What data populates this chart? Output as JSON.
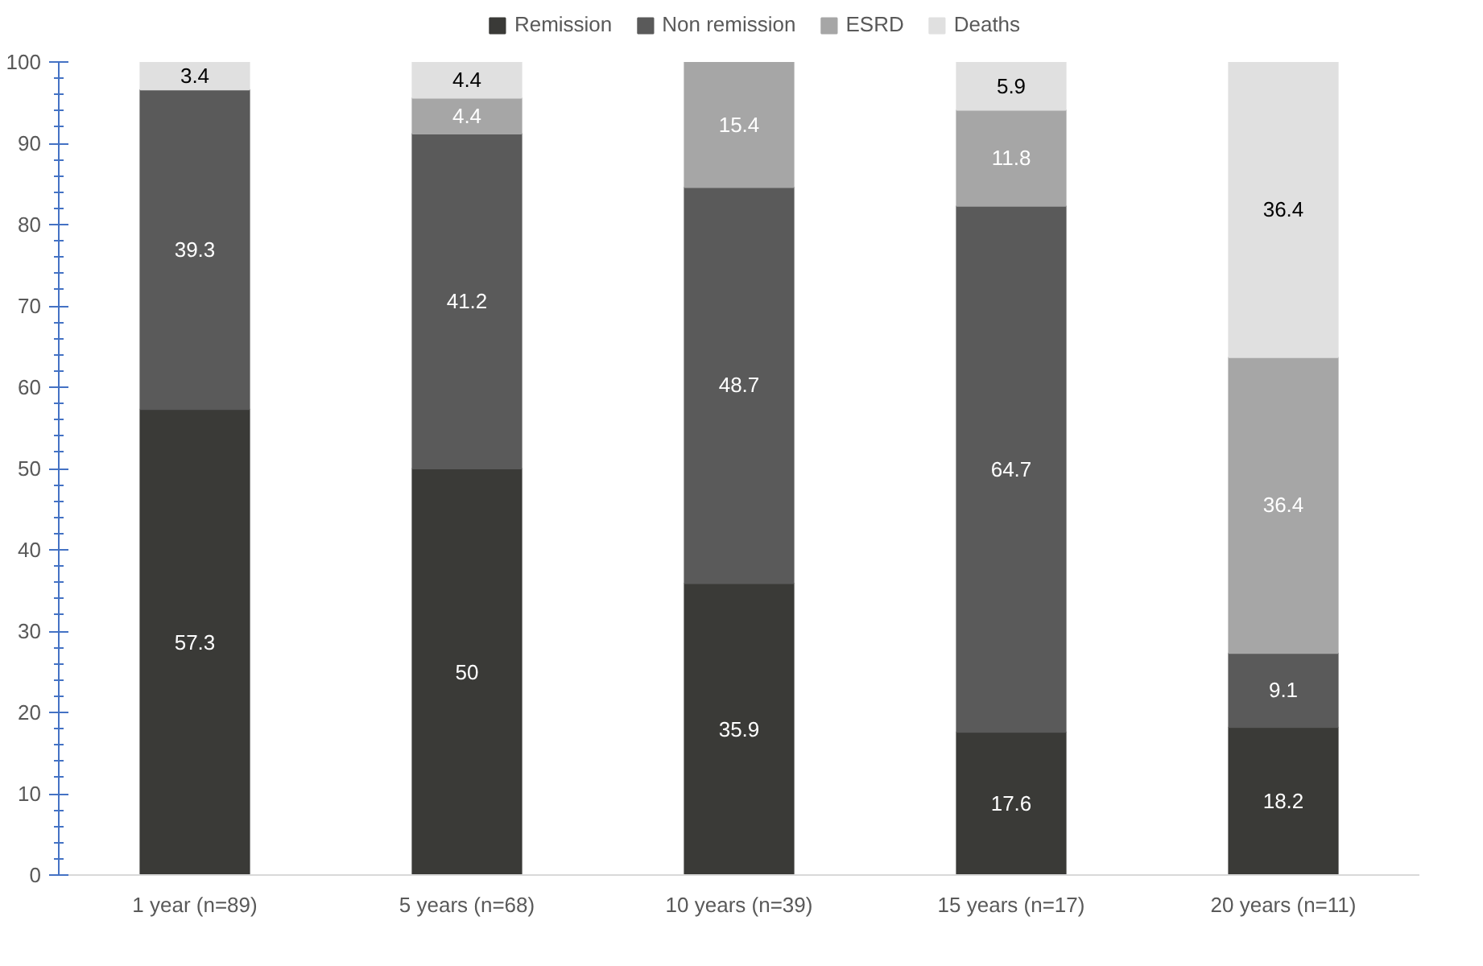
{
  "chart_data": {
    "type": "bar",
    "stacked": true,
    "data_labels": true,
    "legend": "top",
    "grid": false,
    "categories": [
      "1 year (n=89)",
      "5 years (n=68)",
      "10 years (n=39)",
      "15 years (n=17)",
      "20 years (n=11)"
    ],
    "series": [
      {
        "name": "Remission",
        "color": "#3a3a37",
        "values": [
          57.3,
          50,
          35.9,
          17.6,
          18.2
        ]
      },
      {
        "name": "Non remission",
        "color": "#5a5a5a",
        "values": [
          39.3,
          41.2,
          48.7,
          64.7,
          9.1
        ]
      },
      {
        "name": "ESRD",
        "color": "#a6a6a6",
        "values": [
          null,
          4.4,
          15.4,
          11.8,
          36.4
        ]
      },
      {
        "name": "Deaths",
        "color": "#e0e0e0",
        "values": [
          3.4,
          4.4,
          null,
          5.9,
          36.4
        ]
      }
    ],
    "ylim": [
      0,
      100
    ],
    "yticks": [
      0,
      {
        "value": 2,
        "label": null
      },
      {
        "value": 4,
        "label": null
      },
      {
        "value": 6,
        "label": null
      },
      {
        "value": 8,
        "label": null
      },
      10,
      {
        "value": 12,
        "label": null
      },
      {
        "value": 14,
        "label": null
      },
      {
        "value": 16,
        "label": null
      },
      {
        "value": 18,
        "label": null
      },
      20,
      {
        "value": 22,
        "label": null
      },
      {
        "value": 24,
        "label": null
      },
      {
        "value": 26,
        "label": null
      },
      {
        "value": 28,
        "label": null
      },
      30,
      {
        "value": 32,
        "label": null
      },
      {
        "value": 34,
        "label": null
      },
      {
        "value": 36,
        "label": null
      },
      {
        "value": 38,
        "label": null
      },
      40,
      {
        "value": 42,
        "label": null
      },
      {
        "value": 44,
        "label": null
      },
      {
        "value": 46,
        "label": null
      },
      {
        "value": 48,
        "label": null
      },
      50,
      {
        "value": 52,
        "label": null
      },
      {
        "value": 54,
        "label": null
      },
      {
        "value": 56,
        "label": null
      },
      {
        "value": 58,
        "label": null
      },
      60,
      {
        "value": 62,
        "label": null
      },
      {
        "value": 64,
        "label": null
      },
      {
        "value": 66,
        "label": null
      },
      {
        "value": 68,
        "label": null
      },
      70,
      {
        "value": 72,
        "label": null
      },
      {
        "value": 74,
        "label": null
      },
      {
        "value": 76,
        "label": null
      },
      {
        "value": 78,
        "label": null
      },
      80,
      {
        "value": 82,
        "label": null
      },
      {
        "value": 84,
        "label": null
      },
      {
        "value": 86,
        "label": null
      },
      {
        "value": 88,
        "label": null
      },
      90,
      {
        "value": 92,
        "label": null
      },
      {
        "value": 94,
        "label": null
      },
      {
        "value": 96,
        "label": null
      },
      {
        "value": 98,
        "label": null
      },
      100
    ]
  }
}
